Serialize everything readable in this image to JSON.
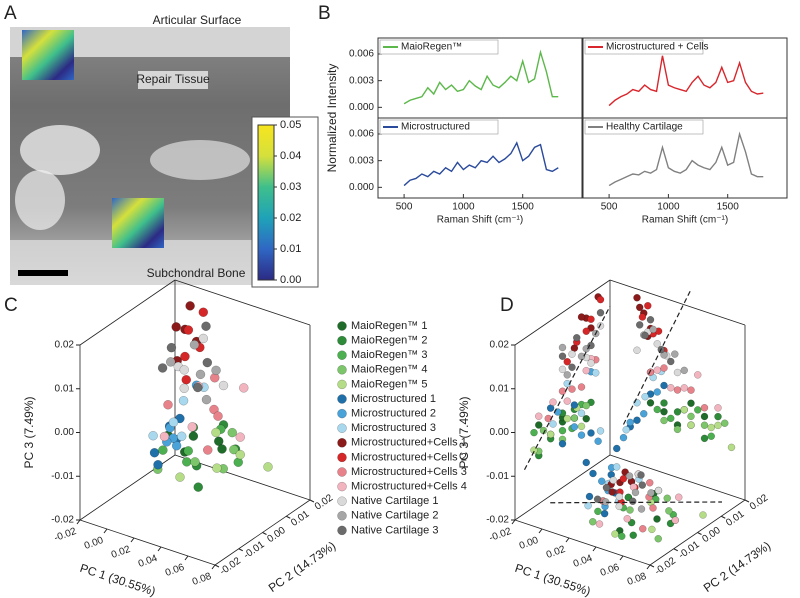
{
  "panel_labels": [
    "A",
    "B",
    "C",
    "D"
  ],
  "chart_data": [
    {
      "type": "colorbar",
      "annotations": [
        "Articular Surface",
        "Repair Tissue",
        "Subchondral Bone"
      ],
      "colormap": [
        "#2c2a84",
        "#2f67c4",
        "#1fa2b8",
        "#3fbf8c",
        "#d5e03c",
        "#f7e51d"
      ],
      "ylim": [
        0,
        0.05
      ],
      "yticks": [
        {
          "value": 0,
          "label": "0.00"
        },
        0.01,
        0.02,
        0.03,
        0.04,
        0.05
      ]
    },
    {
      "type": "line",
      "y_label": "Normalized Intensity",
      "x": [
        500,
        550,
        600,
        650,
        700,
        750,
        800,
        850,
        900,
        950,
        1000,
        1050,
        1100,
        1150,
        1200,
        1250,
        1300,
        1350,
        1400,
        1450,
        1500,
        1550,
        1600,
        1650,
        1700,
        1750,
        1800
      ],
      "series": [
        {
          "name": "MaioRegen™",
          "color": "#5cb84a",
          "values": [
            0.0004,
            0.0008,
            0.001,
            0.0012,
            0.0022,
            0.0015,
            0.0028,
            0.002,
            0.0025,
            0.0018,
            0.002,
            0.003,
            0.0024,
            0.002,
            0.0035,
            0.0025,
            0.0022,
            0.0028,
            0.0035,
            0.003,
            0.0052,
            0.0028,
            0.0032,
            0.0062,
            0.004,
            0.0012,
            0.0012
          ]
        }
      ],
      "xlim": [
        280,
        2000
      ],
      "ylim": [
        -0.0012,
        0.0078
      ],
      "yticks": [
        {
          "value": 0,
          "label": "0.000"
        },
        0.003,
        0.006
      ]
    },
    {
      "type": "line",
      "x": [
        500,
        550,
        600,
        650,
        700,
        750,
        800,
        850,
        900,
        950,
        1000,
        1050,
        1100,
        1150,
        1200,
        1250,
        1300,
        1350,
        1400,
        1450,
        1500,
        1550,
        1600,
        1650,
        1700,
        1750,
        1800
      ],
      "series": [
        {
          "name": "Microstructured + Cells",
          "color": "#d8262c",
          "values": [
            0.0002,
            0.0008,
            0.0012,
            0.0015,
            0.002,
            0.0018,
            0.0025,
            0.002,
            0.0018,
            0.0058,
            0.0025,
            0.0022,
            0.002,
            0.0018,
            0.0028,
            0.0035,
            0.0025,
            0.0022,
            0.0028,
            0.0045,
            0.0028,
            0.003,
            0.005,
            0.0028,
            0.0018,
            0.0015,
            0.0016
          ]
        }
      ],
      "xlim": [
        280,
        2000
      ],
      "ylim": [
        -0.0012,
        0.0078
      ]
    },
    {
      "type": "line",
      "x_label": "Raman Shift (cm⁻¹)",
      "x": [
        500,
        550,
        600,
        650,
        700,
        750,
        800,
        850,
        900,
        950,
        1000,
        1050,
        1100,
        1150,
        1200,
        1250,
        1300,
        1350,
        1400,
        1450,
        1500,
        1550,
        1600,
        1650,
        1700,
        1750,
        1800
      ],
      "series": [
        {
          "name": "Microstructured",
          "color": "#2a4a9c",
          "values": [
            0.0002,
            0.0008,
            0.001,
            0.0015,
            0.0012,
            0.0018,
            0.0015,
            0.0022,
            0.0018,
            0.0028,
            0.002,
            0.0025,
            0.0022,
            0.003,
            0.0028,
            0.0035,
            0.0028,
            0.0032,
            0.0038,
            0.005,
            0.003,
            0.0035,
            0.0045,
            0.0048,
            0.002,
            0.0018,
            0.0022
          ]
        }
      ],
      "xlim": [
        280,
        2000
      ],
      "ylim": [
        -0.0012,
        0.0078
      ],
      "xticks": [
        500,
        1000,
        1500
      ],
      "yticks": [
        {
          "value": 0,
          "label": "0.000"
        },
        0.003,
        0.006
      ]
    },
    {
      "type": "line",
      "x_label": "Raman Shift (cm⁻¹)",
      "x": [
        500,
        550,
        600,
        650,
        700,
        750,
        800,
        850,
        900,
        950,
        1000,
        1050,
        1100,
        1150,
        1200,
        1250,
        1300,
        1350,
        1400,
        1450,
        1500,
        1550,
        1600,
        1650,
        1700,
        1750,
        1800
      ],
      "series": [
        {
          "name": "Healthy Cartilage",
          "color": "#808080",
          "values": [
            0.0002,
            0.0006,
            0.0009,
            0.0012,
            0.0015,
            0.0014,
            0.0018,
            0.0016,
            0.002,
            0.0045,
            0.0022,
            0.0018,
            0.0016,
            0.002,
            0.003,
            0.0025,
            0.0022,
            0.002,
            0.0028,
            0.0045,
            0.0025,
            0.0028,
            0.006,
            0.004,
            0.0015,
            0.0012,
            0.0012
          ]
        }
      ],
      "xlim": [
        280,
        2000
      ],
      "ylim": [
        -0.0012,
        0.0078
      ],
      "xticks": [
        500,
        1000,
        1500
      ]
    },
    {
      "type": "scatter3d",
      "x_label": "PC 1 (30.55%)",
      "y_label": "PC 2 (14.73%)",
      "z_label": "PC 3 (7.49%)",
      "xlim": [
        -0.02,
        0.08
      ],
      "ylim": [
        -0.02,
        0.02
      ],
      "zlim": [
        -0.02,
        0.02
      ],
      "xticks": [
        -0.02,
        {
          "value": 0,
          "label": "0.00"
        },
        0.02,
        0.04,
        0.06,
        0.08
      ],
      "yticks": [
        -0.02,
        -0.01,
        {
          "value": 0,
          "label": "0.00"
        },
        0.01,
        0.02
      ],
      "zticks": [
        -0.02,
        -0.01,
        {
          "value": 0,
          "label": "0.00"
        },
        0.01,
        0.02
      ],
      "series": [
        {
          "name": "MaioRegen™ 1",
          "color": "#1e6b2a",
          "x": [
            0.01,
            0.03,
            0.05,
            0.04,
            0.02
          ],
          "y": [
            0.0,
            0.01,
            0.0,
            -0.01,
            0.005
          ],
          "z": [
            -0.005,
            -0.008,
            -0.004,
            -0.002,
            -0.006
          ]
        },
        {
          "name": "MaioRegen™ 2",
          "color": "#2e8b3a",
          "x": [
            0.02,
            0.04,
            0.06,
            0.03,
            0.05
          ],
          "y": [
            0.005,
            -0.005,
            0.0,
            0.012,
            -0.01
          ],
          "z": [
            -0.004,
            -0.007,
            -0.003,
            -0.005,
            -0.009
          ]
        },
        {
          "name": "MaioRegen™ 3",
          "color": "#4caf50",
          "x": [
            0.015,
            0.035,
            0.055,
            0.045,
            0.025
          ],
          "y": [
            -0.005,
            0.008,
            0.004,
            -0.012,
            0.0
          ],
          "z": [
            -0.006,
            -0.004,
            -0.008,
            -0.003,
            -0.007
          ]
        },
        {
          "name": "MaioRegen™ 4",
          "color": "#7cc56a",
          "x": [
            0.03,
            0.05,
            0.065,
            0.02,
            0.04
          ],
          "y": [
            0.0,
            0.005,
            -0.008,
            -0.01,
            0.01
          ],
          "z": [
            -0.009,
            -0.006,
            -0.004,
            -0.008,
            -0.005
          ]
        },
        {
          "name": "MaioRegen™ 5",
          "color": "#b5dc86",
          "x": [
            0.04,
            0.06,
            0.07,
            0.035,
            0.055
          ],
          "y": [
            -0.012,
            0.002,
            0.008,
            0.006,
            -0.005
          ],
          "z": [
            -0.007,
            -0.005,
            -0.009,
            -0.004,
            -0.006
          ]
        },
        {
          "name": "Microstructured 1",
          "color": "#1f6fa8",
          "x": [
            -0.015,
            0.0,
            0.01,
            0.02,
            -0.005
          ],
          "y": [
            0.01,
            0.0,
            0.005,
            -0.005,
            0.012
          ],
          "z": [
            -0.018,
            -0.01,
            -0.003,
            0.0,
            -0.012
          ]
        },
        {
          "name": "Microstructured 2",
          "color": "#4aa3d8",
          "x": [
            -0.01,
            0.005,
            0.015,
            -0.005,
            0.01
          ],
          "y": [
            0.015,
            0.005,
            -0.002,
            0.008,
            0.012
          ],
          "z": [
            -0.015,
            -0.008,
            -0.002,
            -0.011,
            0.002
          ]
        },
        {
          "name": "Microstructured 3",
          "color": "#a8d8ee",
          "x": [
            0.0,
            0.012,
            -0.008,
            0.018,
            0.006
          ],
          "y": [
            0.008,
            0.014,
            0.016,
            0.002,
            -0.004
          ],
          "z": [
            -0.006,
            0.001,
            -0.013,
            0.003,
            -0.004
          ]
        },
        {
          "name": "Microstructured+Cells 1",
          "color": "#8b1a1a",
          "x": [
            0.0,
            0.005,
            0.01,
            0.002,
            0.008
          ],
          "y": [
            0.015,
            0.01,
            0.012,
            0.008,
            0.005
          ],
          "z": [
            0.018,
            0.015,
            0.012,
            0.016,
            0.01
          ]
        },
        {
          "name": "Microstructured+Cells 2",
          "color": "#d62728",
          "x": [
            0.004,
            0.012,
            0.02,
            0.008,
            0.016
          ],
          "y": [
            0.012,
            0.006,
            0.002,
            0.016,
            0.01
          ],
          "z": [
            0.014,
            0.011,
            0.008,
            0.017,
            0.012
          ]
        },
        {
          "name": "Microstructured+Cells 3",
          "color": "#e8828a",
          "x": [
            0.01,
            0.03,
            0.05,
            0.02,
            0.04
          ],
          "y": [
            0.0,
            0.008,
            -0.006,
            0.014,
            0.004
          ],
          "z": [
            0.002,
            0.0,
            -0.002,
            0.004,
            0.001
          ]
        },
        {
          "name": "Microstructured+Cells 4",
          "color": "#f2b4be",
          "x": [
            0.015,
            0.035,
            0.06,
            0.025,
            0.045
          ],
          "y": [
            0.01,
            -0.004,
            0.002,
            -0.01,
            0.012
          ],
          "z": [
            0.003,
            0.001,
            -0.001,
            0.0,
            0.005
          ]
        },
        {
          "name": "Native Cartilage 1",
          "color": "#d9d9d9",
          "x": [
            0.0,
            0.015,
            0.03,
            0.008,
            0.022
          ],
          "y": [
            0.01,
            0.004,
            0.012,
            0.016,
            0.0
          ],
          "z": [
            0.006,
            0.009,
            0.004,
            0.011,
            0.007
          ]
        },
        {
          "name": "Native Cartilage 2",
          "color": "#a6a6a6",
          "x": [
            0.005,
            0.02,
            0.035,
            0.012,
            0.028
          ],
          "y": [
            0.014,
            0.008,
            0.002,
            0.0,
            0.01
          ],
          "z": [
            0.01,
            0.007,
            0.005,
            0.012,
            0.008
          ]
        },
        {
          "name": "Native Cartilage 3",
          "color": "#6b6b6b",
          "x": [
            0.002,
            0.018,
            0.01,
            0.025,
            0.006
          ],
          "y": [
            0.006,
            0.012,
            0.016,
            0.004,
            0.0
          ],
          "z": [
            0.012,
            0.008,
            0.014,
            0.006,
            0.01
          ]
        }
      ]
    }
  ]
}
